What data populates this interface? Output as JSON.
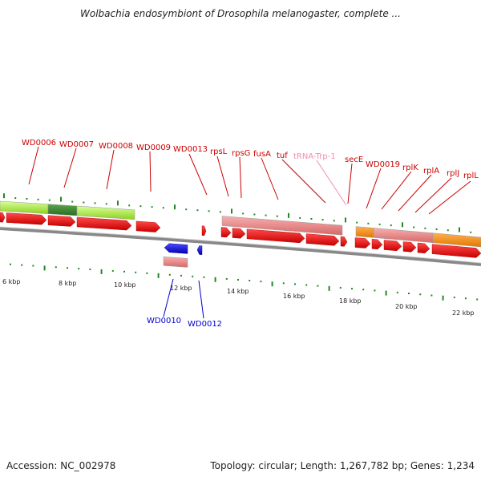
{
  "title": "Wolbachia endosymbiont of Drosophila melanogaster, complete ...",
  "footer": {
    "accession": "Accession: NC_002978",
    "topology": "Topology: circular; Length: 1,267,782 bp; Genes: 1,234"
  },
  "colors": {
    "gene_label": "#cc0000",
    "trna_label": "#f08fb0",
    "reverse_label": "#0000cc",
    "backbone": "#888888",
    "tick": "#228822"
  },
  "scale_labels": [
    "6 kbp",
    "8 kbp",
    "10 kbp",
    "12 kbp",
    "14 kbp",
    "16 kbp",
    "18 kbp",
    "20 kbp",
    "22 kbp"
  ],
  "forward_labels": [
    "WD0006",
    "WD0007",
    "WD0008",
    "WD0009",
    "WD0013",
    "rpsL",
    "rpsG",
    "fusA",
    "tuf",
    "tRNA-Trp-1",
    "secE",
    "WD0019",
    "rplK",
    "rplA",
    "rplJ",
    "rplL"
  ],
  "reverse_labels": [
    "WD0010",
    "WD0012"
  ]
}
